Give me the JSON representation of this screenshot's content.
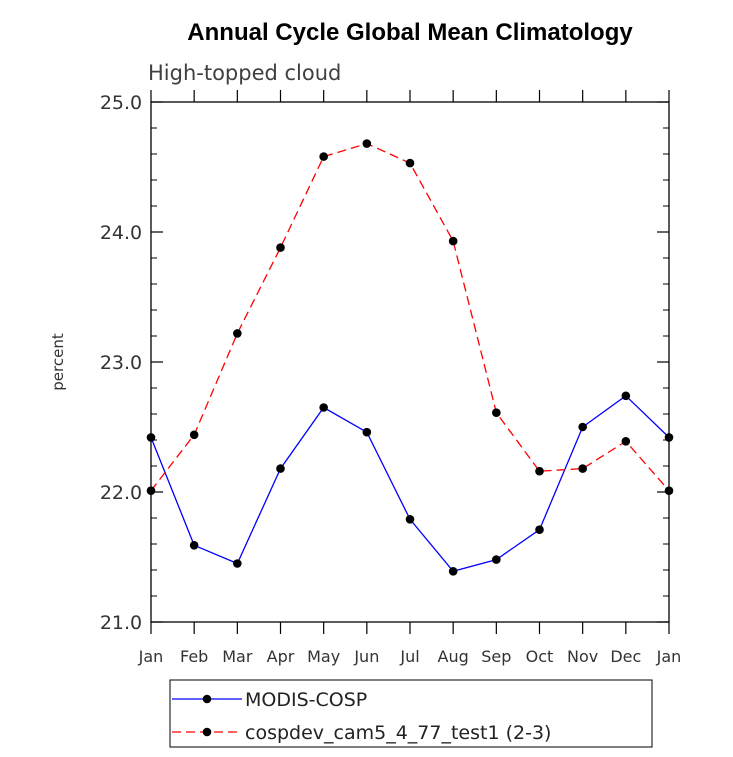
{
  "chart_data": {
    "type": "line",
    "title": "Annual Cycle Global Mean Climatology",
    "subtitle": "High-topped cloud",
    "xlabel": "",
    "ylabel": "percent",
    "categories": [
      "Jan",
      "Feb",
      "Mar",
      "Apr",
      "May",
      "Jun",
      "Jul",
      "Aug",
      "Sep",
      "Oct",
      "Nov",
      "Dec",
      "Jan"
    ],
    "ylim": [
      21.0,
      25.0
    ],
    "yticks": [
      "21.0",
      "22.0",
      "23.0",
      "24.0",
      "25.0"
    ],
    "grid": false,
    "legend_position": "bottom",
    "series": [
      {
        "name": "MODIS-COSP",
        "color": "#0000ff",
        "line_style": "solid",
        "marker": "filled-circle",
        "values": [
          22.42,
          21.59,
          21.45,
          22.18,
          22.65,
          22.46,
          21.79,
          21.39,
          21.48,
          21.71,
          22.5,
          22.74,
          22.42
        ]
      },
      {
        "name": "cospdev_cam5_4_77_test1 (2-3)",
        "color": "#ff0000",
        "line_style": "dashed",
        "marker": "filled-circle",
        "values": [
          22.01,
          22.44,
          23.22,
          23.88,
          24.58,
          24.68,
          24.53,
          23.93,
          22.61,
          22.16,
          22.18,
          22.39,
          22.01
        ]
      }
    ]
  }
}
